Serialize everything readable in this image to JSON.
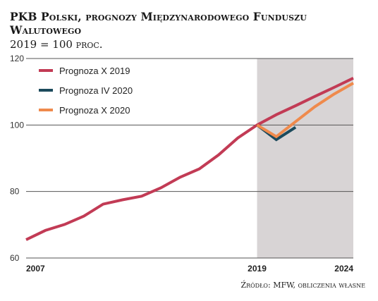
{
  "header": {
    "title": "PKB Polski, prognozy Międzynarodowego Funduszu Walutowego",
    "subtitle": "2019 = 100 proc."
  },
  "source": "Źródło: MFW, obliczenia własne",
  "colors": {
    "series1": "#c23b55",
    "series2": "#1c4a5c",
    "series3": "#ef8a4c",
    "shade": "#d8d4d5",
    "grid": "#555555"
  },
  "chart_data": {
    "type": "line",
    "title": "PKB Polski, prognozy Międzynarodowego Funduszu Walutowego",
    "subtitle": "2019 = 100 proc.",
    "xlabel": "",
    "ylabel": "",
    "xlim": [
      2007,
      2024
    ],
    "ylim": [
      60,
      120
    ],
    "yticks": [
      60,
      80,
      100,
      120
    ],
    "xticks": [
      2007,
      2019,
      2024
    ],
    "shaded_region": [
      2019,
      2024
    ],
    "grid": true,
    "legend_position": "top-left",
    "series": [
      {
        "name": "Prognoza X 2019",
        "x": [
          2007,
          2008,
          2009,
          2010,
          2011,
          2012,
          2013,
          2014,
          2015,
          2016,
          2017,
          2018,
          2019,
          2020,
          2021,
          2022,
          2023,
          2024
        ],
        "y": [
          65.5,
          68.3,
          70.1,
          72.6,
          76.2,
          77.5,
          78.6,
          81.1,
          84.3,
          86.8,
          91.0,
          96.1,
          100,
          103.1,
          105.8,
          108.6,
          111.3,
          114.1
        ]
      },
      {
        "name": "Prognoza IV 2020",
        "x": [
          2019,
          2020,
          2021
        ],
        "y": [
          100,
          95.6,
          99.3
        ]
      },
      {
        "name": "Prognoza X 2020",
        "x": [
          2019,
          2020,
          2021,
          2022,
          2023,
          2024
        ],
        "y": [
          100,
          96.5,
          101.0,
          105.5,
          109.3,
          112.6
        ]
      }
    ]
  }
}
